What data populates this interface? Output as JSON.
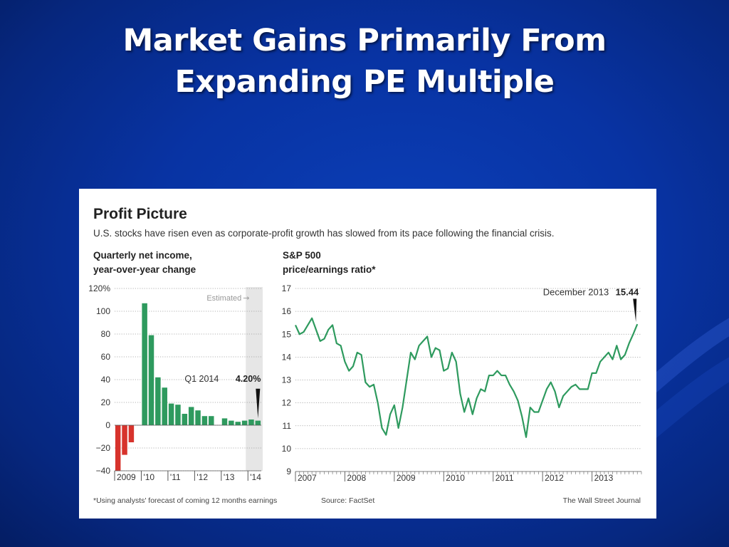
{
  "slide": {
    "title_lines": [
      "Market Gains Primarily From",
      "Expanding PE Multiple"
    ]
  },
  "figure": {
    "title": "Profit Picture",
    "subtitle": "U.S. stocks have risen even as corporate-profit growth has slowed from its pace following the financial crisis.",
    "footnote": "*Using analysts' forecast of coming 12 months earnings",
    "source": "Source: FactSet",
    "credit": "The Wall Street Journal"
  },
  "colors": {
    "background": "#0833a3",
    "bar_positive": "#2e9a5e",
    "bar_negative": "#d7332c",
    "line": "#2e9a5e",
    "estimated_shade": "#e6e6e6"
  },
  "chart_data": [
    {
      "type": "bar",
      "ylabel_lines": [
        "Quarterly net income,",
        "year-over-year change"
      ],
      "ylim": [
        -40,
        120
      ],
      "yticks": [
        "120%",
        "100",
        "80",
        "60",
        "40",
        "20",
        "0",
        "−20",
        "−40"
      ],
      "ytick_values": [
        120,
        100,
        80,
        60,
        40,
        20,
        0,
        -20,
        -40
      ],
      "xtick_labels": [
        "2009",
        "'10",
        "'11",
        "'12",
        "'13",
        "'14"
      ],
      "xtick_quarter_index": [
        0,
        4,
        8,
        12,
        16,
        20
      ],
      "values": [
        -40,
        -26,
        -15,
        null,
        107,
        79,
        42,
        33,
        19,
        18,
        10,
        16,
        13,
        8,
        8,
        null,
        6,
        4,
        3,
        4,
        5,
        4
      ],
      "estimated_from_index": 20,
      "estimated_label": "Estimated",
      "annotation": {
        "label": "Q1 2014",
        "value_text": "4.20%",
        "index": 21,
        "value": 4.2
      },
      "grid": true
    },
    {
      "type": "line",
      "ylabel_lines": [
        "S&P 500",
        "price/earnings ratio*"
      ],
      "ylim": [
        9,
        17
      ],
      "yticks": [
        "17",
        "16",
        "15",
        "14",
        "13",
        "12",
        "11",
        "10",
        "9"
      ],
      "ytick_values": [
        17,
        16,
        15,
        14,
        13,
        12,
        11,
        10,
        9
      ],
      "x_start": "2007-01",
      "xtick_labels": [
        "2007",
        "2008",
        "2009",
        "2010",
        "2011",
        "2012",
        "2013"
      ],
      "values": [
        15.4,
        15.0,
        15.1,
        15.4,
        15.7,
        15.2,
        14.7,
        14.8,
        15.2,
        15.4,
        14.6,
        14.5,
        13.8,
        13.4,
        13.6,
        14.2,
        14.1,
        12.9,
        12.7,
        12.8,
        12.0,
        10.9,
        10.6,
        11.5,
        11.9,
        10.9,
        11.8,
        13.0,
        14.2,
        13.9,
        14.5,
        14.7,
        14.9,
        14.0,
        14.4,
        14.3,
        13.4,
        13.5,
        14.2,
        13.8,
        12.4,
        11.6,
        12.2,
        11.5,
        12.2,
        12.6,
        12.5,
        13.2,
        13.2,
        13.4,
        13.2,
        13.2,
        12.8,
        12.5,
        12.1,
        11.4,
        10.5,
        11.8,
        11.6,
        11.6,
        12.1,
        12.6,
        12.9,
        12.5,
        11.8,
        12.3,
        12.5,
        12.7,
        12.8,
        12.6,
        12.6,
        12.6,
        13.3,
        13.3,
        13.8,
        14.0,
        14.2,
        13.9,
        14.5,
        13.9,
        14.1,
        14.6,
        15.0,
        15.44
      ],
      "annotation": {
        "label": "December 2013",
        "value_text": "15.44",
        "value": 15.44
      },
      "grid": true
    }
  ]
}
